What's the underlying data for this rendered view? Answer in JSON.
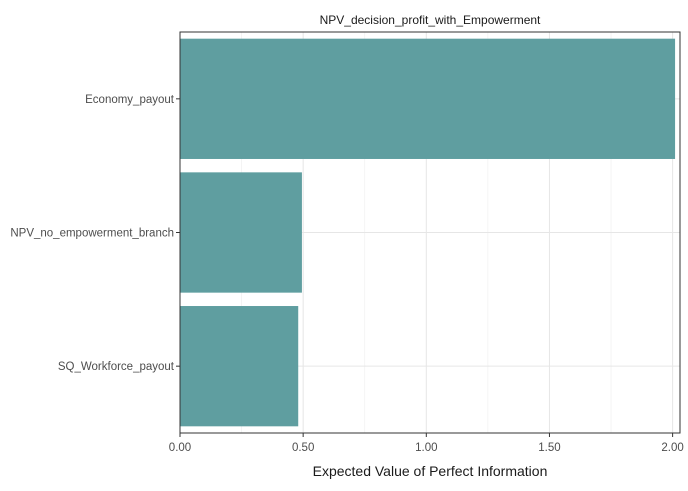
{
  "chart_data": {
    "type": "bar",
    "orientation": "horizontal",
    "title": "NPV_decision_profit_with_Empowerment",
    "xlabel": "Expected Value of Perfect Information",
    "ylabel": "",
    "categories": [
      "Economy_payout",
      "NPV_no_empowerment_branch",
      "SQ_Workforce_payout"
    ],
    "values": [
      2.01,
      0.495,
      0.48
    ],
    "xlim": [
      0,
      2.03
    ],
    "xticks": [
      0,
      0.5,
      1.0,
      1.5,
      2.0
    ],
    "xtick_labels": [
      "0.00",
      "0.50",
      "1.00",
      "1.50",
      "2.00"
    ],
    "bar_color": "#5F9EA0",
    "grid": true,
    "legend": "none"
  }
}
